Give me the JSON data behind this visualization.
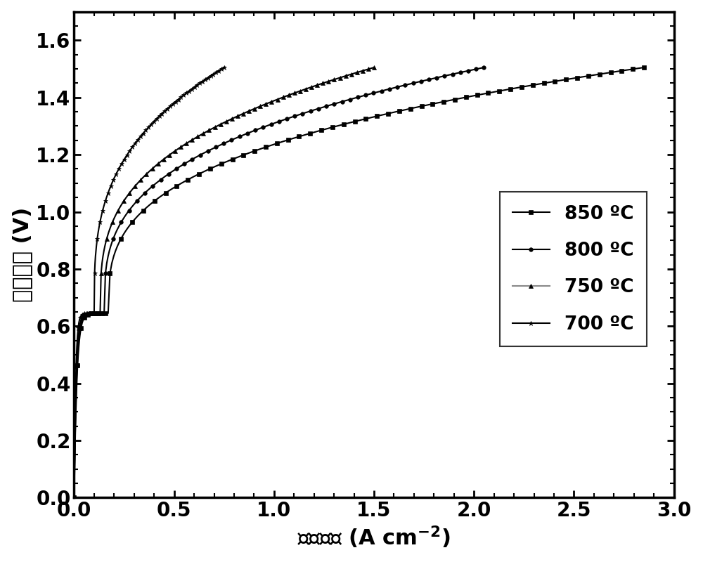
{
  "xlabel": "电流密度 (A cm⁻²)",
  "ylabel": "电池电压 (V)",
  "xlim": [
    0.0,
    3.0
  ],
  "ylim": [
    0.0,
    1.7
  ],
  "xticks": [
    0.0,
    0.5,
    1.0,
    1.5,
    2.0,
    2.5,
    3.0
  ],
  "yticks": [
    0.0,
    0.2,
    0.4,
    0.6,
    0.8,
    1.0,
    1.2,
    1.4,
    1.6
  ],
  "legend_labels": [
    "850 ºC",
    "800 ºC",
    "750 ºC",
    "700 ºC"
  ],
  "markers": [
    "s",
    "o",
    "^",
    "*"
  ],
  "line_color": "#000000",
  "legend_750_color": "#808080",
  "legend_700_color": "#606060",
  "background_color": "#ffffff",
  "label_fontsize": 22,
  "tick_fontsize": 20,
  "legend_fontsize": 19,
  "line_width": 1.5,
  "marker_size_s": 4,
  "marker_size_o": 4,
  "marker_size_tri": 4,
  "marker_size_star": 5,
  "series": [
    {
      "label": "850 ºC",
      "i_max": 2.85,
      "v_oc": 1.505,
      "knee_i": 0.17,
      "alpha": 0.32,
      "V_knee": 0.645,
      "marker": "s",
      "marker_size": 4,
      "color": "#000000"
    },
    {
      "label": "800 ºC",
      "i_max": 2.05,
      "v_oc": 1.505,
      "knee_i": 0.15,
      "alpha": 0.32,
      "V_knee": 0.645,
      "marker": "o",
      "marker_size": 4,
      "color": "#000000"
    },
    {
      "label": "750 ºC",
      "i_max": 1.5,
      "v_oc": 1.505,
      "knee_i": 0.13,
      "alpha": 0.32,
      "V_knee": 0.645,
      "marker": "^",
      "marker_size": 4,
      "color": "#000000"
    },
    {
      "label": "700 ºC",
      "i_max": 0.75,
      "v_oc": 1.505,
      "knee_i": 0.1,
      "alpha": 0.32,
      "V_knee": 0.645,
      "marker": "*",
      "marker_size": 5,
      "color": "#000000"
    }
  ]
}
